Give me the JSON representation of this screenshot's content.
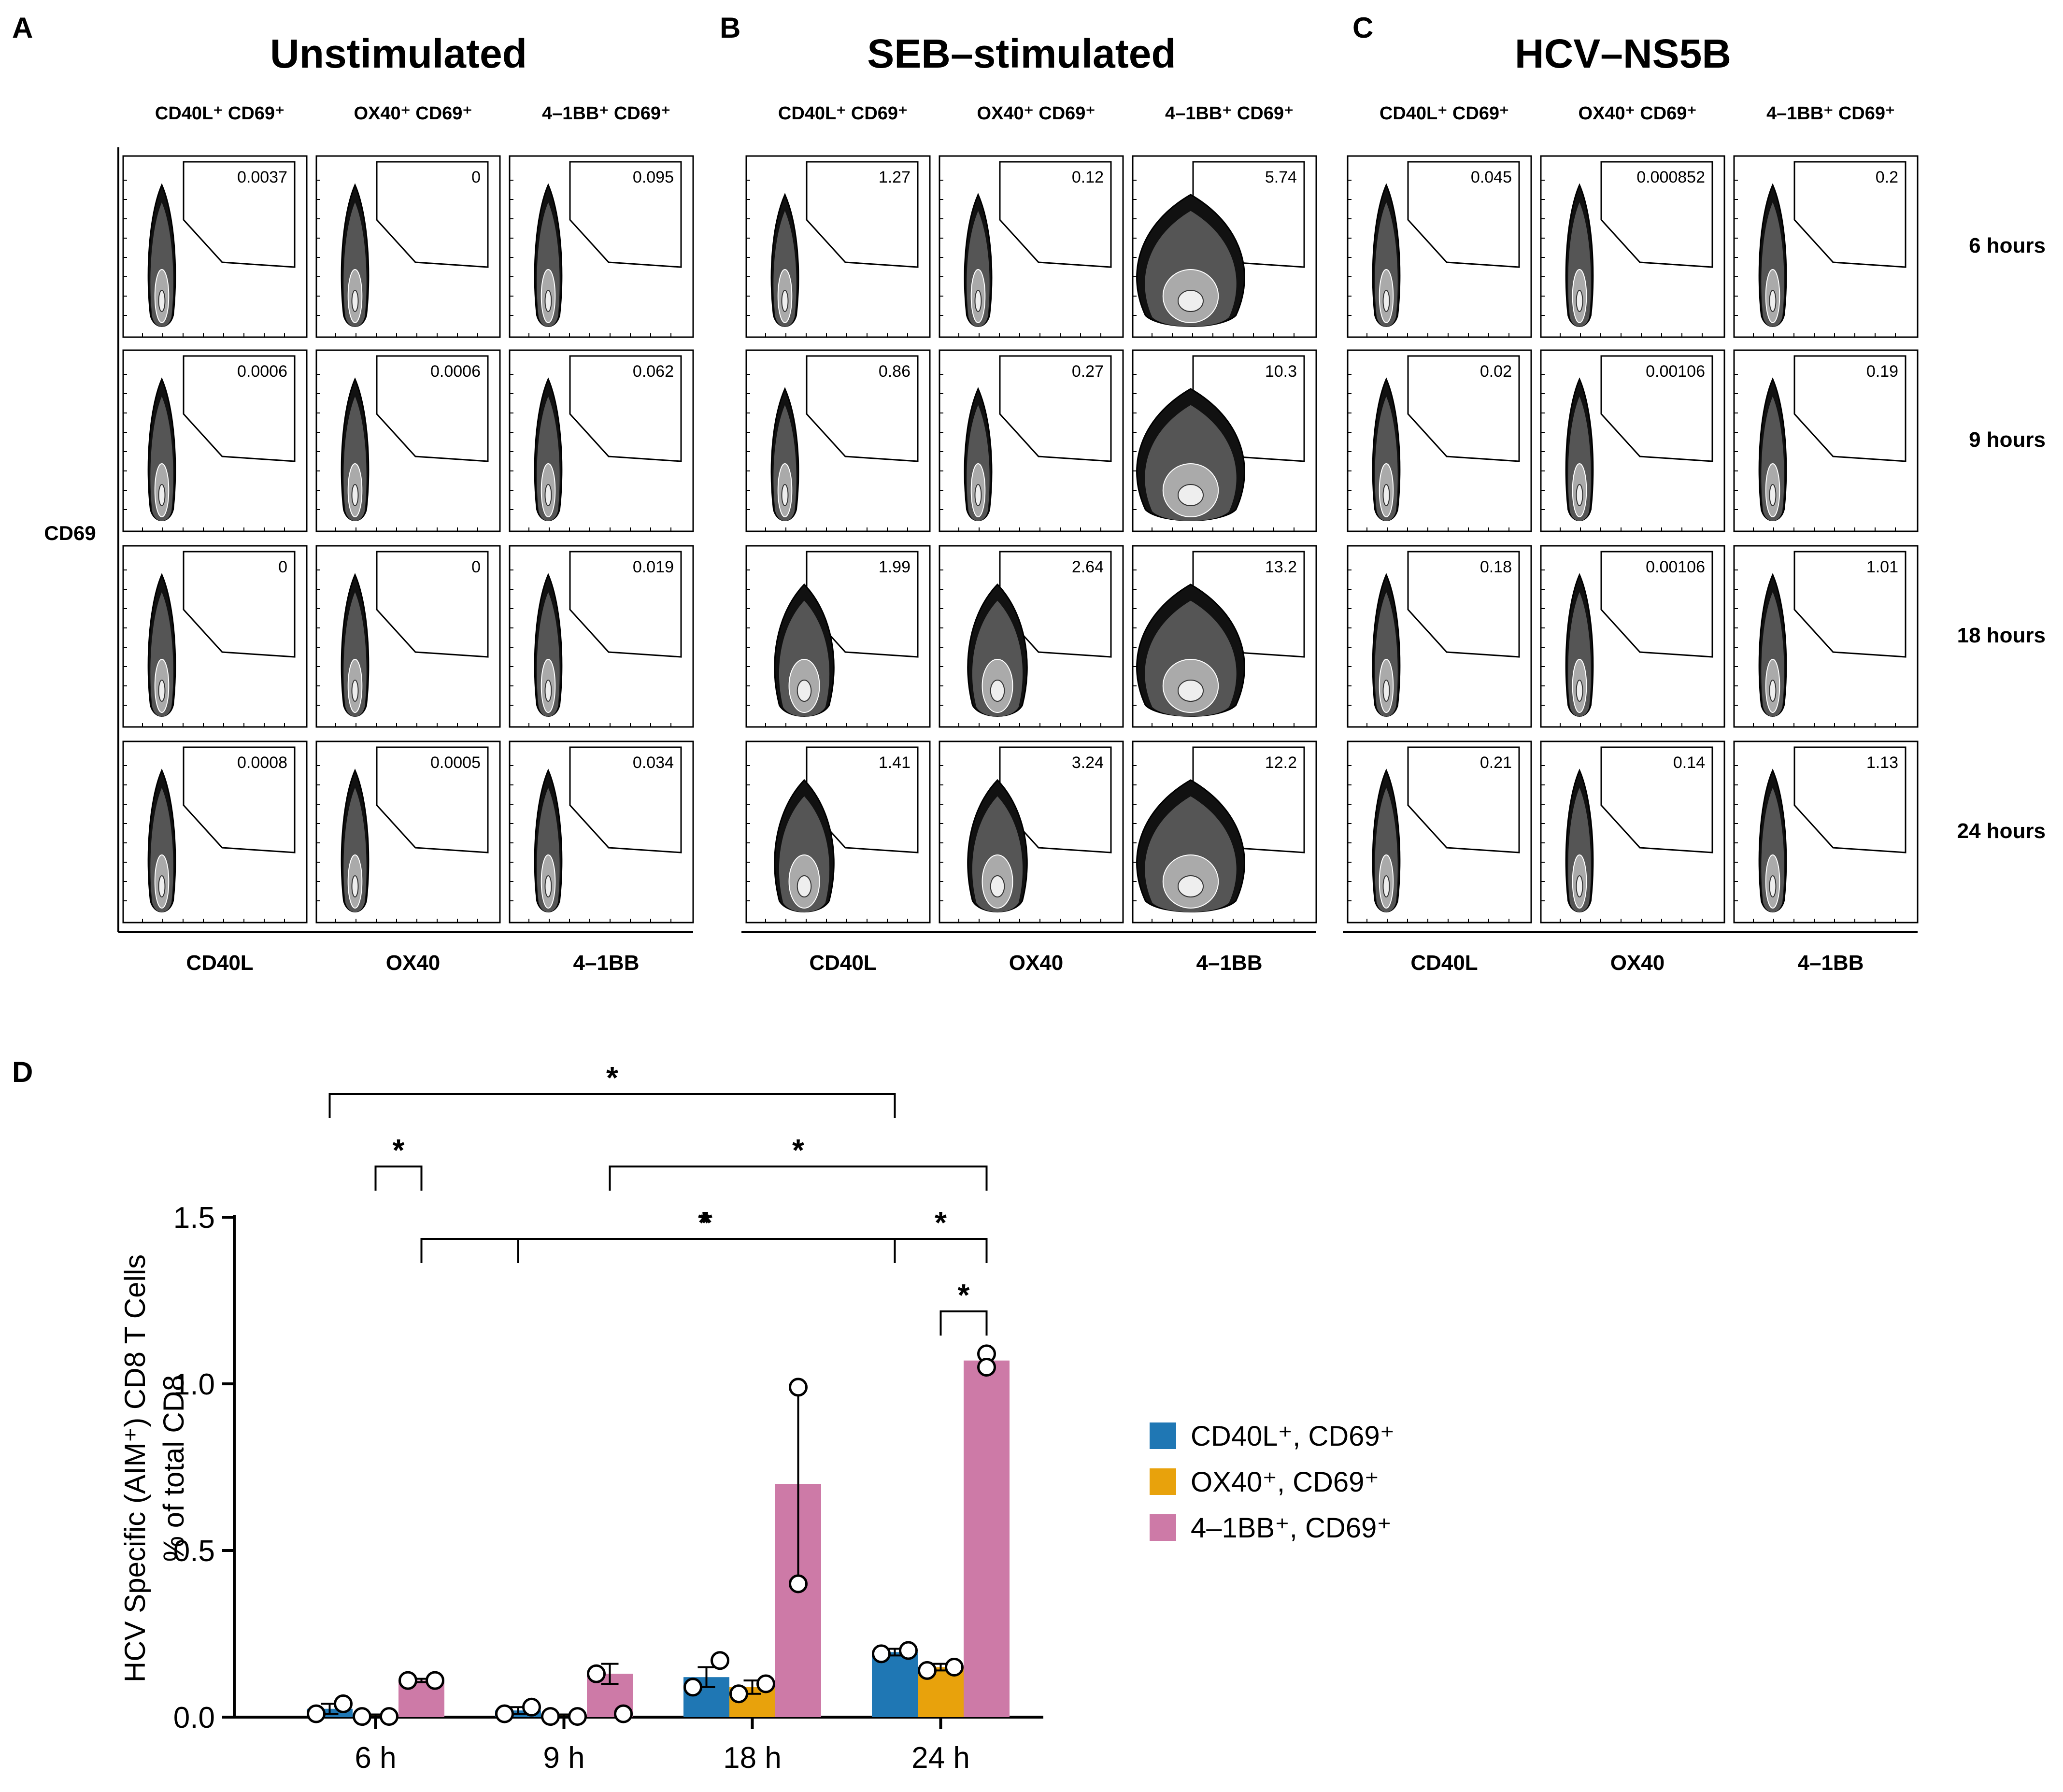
{
  "chart_data": [
    {
      "type": "flow_cytometry_grid",
      "panels": [
        {
          "letter": "A",
          "title": "Unstimulated",
          "gate_labels": [
            "CD40L⁺ CD69⁺",
            "OX40⁺ CD69⁺",
            "4–1BB⁺ CD69⁺"
          ],
          "x_labels": [
            "CD40L",
            "OX40",
            "4–1BB"
          ],
          "values": [
            [
              "0.0037",
              "0",
              "0.095"
            ],
            [
              "0.0006",
              "0.0006",
              "0.062"
            ],
            [
              "0",
              "0",
              "0.019"
            ],
            [
              "0.0008",
              "0.0005",
              "0.034"
            ]
          ]
        },
        {
          "letter": "B",
          "title": "SEB–stimulated",
          "gate_labels": [
            "CD40L⁺ CD69⁺",
            "OX40⁺ CD69⁺",
            "4–1BB⁺ CD69⁺"
          ],
          "x_labels": [
            "CD40L",
            "OX40",
            "4–1BB"
          ],
          "values": [
            [
              "1.27",
              "0.12",
              "5.74"
            ],
            [
              "0.86",
              "0.27",
              "10.3"
            ],
            [
              "1.99",
              "2.64",
              "13.2"
            ],
            [
              "1.41",
              "3.24",
              "12.2"
            ]
          ]
        },
        {
          "letter": "C",
          "title": "HCV–NS5B",
          "gate_labels": [
            "CD40L⁺ CD69⁺",
            "OX40⁺ CD69⁺",
            "4–1BB⁺ CD69⁺"
          ],
          "x_labels": [
            "CD40L",
            "OX40",
            "4–1BB"
          ],
          "values": [
            [
              "0.045",
              "0.000852",
              "0.2"
            ],
            [
              "0.02",
              "0.00106",
              "0.19"
            ],
            [
              "0.18",
              "0.00106",
              "1.01"
            ],
            [
              "0.21",
              "0.14",
              "1.13"
            ]
          ]
        }
      ],
      "y_label": "CD69",
      "row_labels": [
        "6 hours",
        "9 hours",
        "18 hours",
        "24 hours"
      ]
    },
    {
      "type": "bar",
      "panel_letter": "D",
      "categories": [
        "6 h",
        "9 h",
        "18 h",
        "24 h"
      ],
      "series": [
        {
          "name": "CD40L⁺, CD69⁺",
          "color": "#1f77b4",
          "values": [
            0.025,
            0.02,
            0.12,
            0.195
          ],
          "error": [
            0.015,
            0.01,
            0.03,
            0.01
          ],
          "points": [
            [
              0.01,
              0.04
            ],
            [
              0.01,
              0.03
            ],
            [
              0.09,
              0.17
            ],
            [
              0.19,
              0.2
            ]
          ]
        },
        {
          "name": "OX40⁺, CD69⁺",
          "color": "#e8a20c",
          "values": [
            0.005,
            0.005,
            0.09,
            0.15
          ],
          "error": [
            0.003,
            0.003,
            0.02,
            0.01
          ],
          "points": [
            [
              0.002,
              0.002
            ],
            [
              0.002,
              0.002
            ],
            [
              0.07,
              0.1
            ],
            [
              0.14,
              0.15
            ]
          ]
        },
        {
          "name": "4–1BB⁺, CD69⁺",
          "color": "#cd7aa7",
          "values": [
            0.11,
            0.13,
            0.7,
            1.07
          ],
          "error": [
            0.005,
            0.03,
            0.29,
            0.02
          ],
          "points": [
            [
              0.11,
              0.11
            ],
            [
              0.13,
              0.01
            ],
            [
              0.99,
              0.4
            ],
            [
              1.09,
              1.05
            ]
          ]
        }
      ],
      "ylabel_lines": [
        "HCV Specific (AIM⁺) CD8 T Cells",
        "% of total CD8"
      ],
      "ylim": [
        0,
        1.5
      ],
      "yticks": [
        "0.0",
        "0.5",
        "1.0",
        "1.5"
      ],
      "significance_symbol": "*",
      "significance": [
        {
          "from": "6 h|CD40L⁺, CD69⁺",
          "to": "24 h|CD40L⁺, CD69⁺"
        },
        {
          "from": "6 h|OX40⁺, CD69⁺",
          "to": "6 h|4–1BB⁺, CD69⁺"
        },
        {
          "from": "9 h|CD40L⁺, CD69⁺",
          "to": "24 h|CD40L⁺, CD69⁺"
        },
        {
          "from": "6 h|4–1BB⁺, CD69⁺",
          "to": "24 h|4–1BB⁺, CD69⁺"
        },
        {
          "from": "9 h|4–1BB⁺, CD69⁺",
          "to": "24 h|4–1BB⁺, CD69⁺"
        },
        {
          "from": "24 h|CD40L⁺, CD69⁺",
          "to": "24 h|4–1BB⁺, CD69⁺"
        },
        {
          "from": "24 h|OX40⁺, CD69⁺",
          "to": "24 h|4–1BB⁺, CD69⁺"
        }
      ]
    }
  ]
}
